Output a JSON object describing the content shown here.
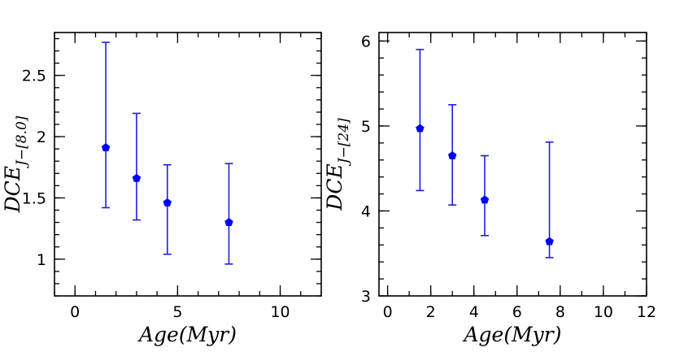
{
  "chart_data": [
    {
      "type": "scatter",
      "title": "",
      "xlabel": "Age(Myr)",
      "ylabel_main": "DCE",
      "ylabel_sub": "J−[8.0]",
      "xlim": [
        -1,
        12
      ],
      "ylim": [
        0.7,
        2.85
      ],
      "xticks": [
        0,
        5,
        10
      ],
      "yticks": [
        1,
        1.5,
        2,
        2.5
      ],
      "ytick_labels": [
        "1",
        "1.5",
        "2",
        "2.5"
      ],
      "series": [
        {
          "name": "DCE J-[8.0]",
          "x": [
            1.5,
            3.0,
            4.5,
            7.5
          ],
          "y": [
            1.91,
            1.66,
            1.46,
            1.3
          ],
          "y_low": [
            1.42,
            1.32,
            1.04,
            0.96
          ],
          "y_high": [
            2.77,
            2.19,
            1.77,
            1.78
          ]
        }
      ],
      "color": "#0000ff"
    },
    {
      "type": "scatter",
      "title": "",
      "xlabel": "Age(Myr)",
      "ylabel_main": "DCE",
      "ylabel_sub": "J−[24]",
      "xlim": [
        -0.4,
        12
      ],
      "ylim": [
        3,
        6.1
      ],
      "xticks": [
        0,
        2,
        4,
        6,
        8,
        10,
        12
      ],
      "yticks": [
        3,
        4,
        5,
        6
      ],
      "ytick_labels": [
        "3",
        "4",
        "5",
        "6"
      ],
      "series": [
        {
          "name": "DCE J-[24]",
          "x": [
            1.5,
            3.0,
            4.5,
            7.5
          ],
          "y": [
            4.97,
            4.65,
            4.13,
            3.64
          ],
          "y_low": [
            4.24,
            4.07,
            3.71,
            3.45
          ],
          "y_high": [
            5.9,
            5.25,
            4.65,
            4.81
          ]
        }
      ],
      "color": "#0000ff"
    }
  ]
}
